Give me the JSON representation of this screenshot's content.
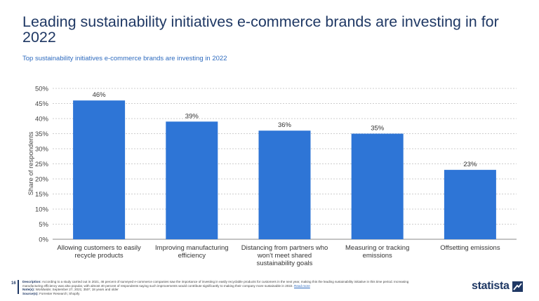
{
  "header": {
    "title": "Leading sustainability initiatives e-commerce brands are investing in for 2022",
    "subtitle": "Top sustainability initiatives e-commerce brands are investing in 2022"
  },
  "chart_data": {
    "type": "bar",
    "categories": [
      [
        "Allowing customers to easily",
        "recycle products"
      ],
      [
        "Improving manufacturing",
        "efficiency"
      ],
      [
        "Distancing from partners who",
        "won't meet shared",
        "sustainability goals"
      ],
      [
        "Measuring or tracking",
        "emissions"
      ],
      [
        "Offsetting emissions"
      ]
    ],
    "values": [
      46,
      39,
      36,
      35,
      23
    ],
    "data_labels": [
      "46%",
      "39%",
      "36%",
      "35%",
      "23%"
    ],
    "ylabel": "Share of respondents",
    "ylim": [
      0,
      50
    ],
    "yticks": [
      0,
      5,
      10,
      15,
      20,
      25,
      30,
      35,
      40,
      45,
      50
    ],
    "ytick_labels": [
      "0%",
      "5%",
      "10%",
      "15%",
      "20%",
      "25%",
      "30%",
      "35%",
      "40%",
      "45%",
      "50%"
    ],
    "grid": true,
    "bar_color": "#2e75d6"
  },
  "footer": {
    "page_number": "16",
    "description_label": "Description:",
    "description_text": "According to a study carried out in 2021, 46 percent of surveyed e-commerce companies saw the importance of investing in easily recyclable products for customers in the next year, making this the leading sustainability initiative in this time period. Increasing manufacturing efficiency was also popular, with almost 40 percent of respondents saying such improvements would contribute significantly to making their company more sustainable in 2022.",
    "read_more": "Read more",
    "notes_label": "Note(s):",
    "notes_text": "Worldwide; September 27, 2021; 350*; 18 years and older",
    "sources_label": "Source(s):",
    "sources_text": "Forrester Research; Shopify",
    "logo_text": "statista"
  }
}
